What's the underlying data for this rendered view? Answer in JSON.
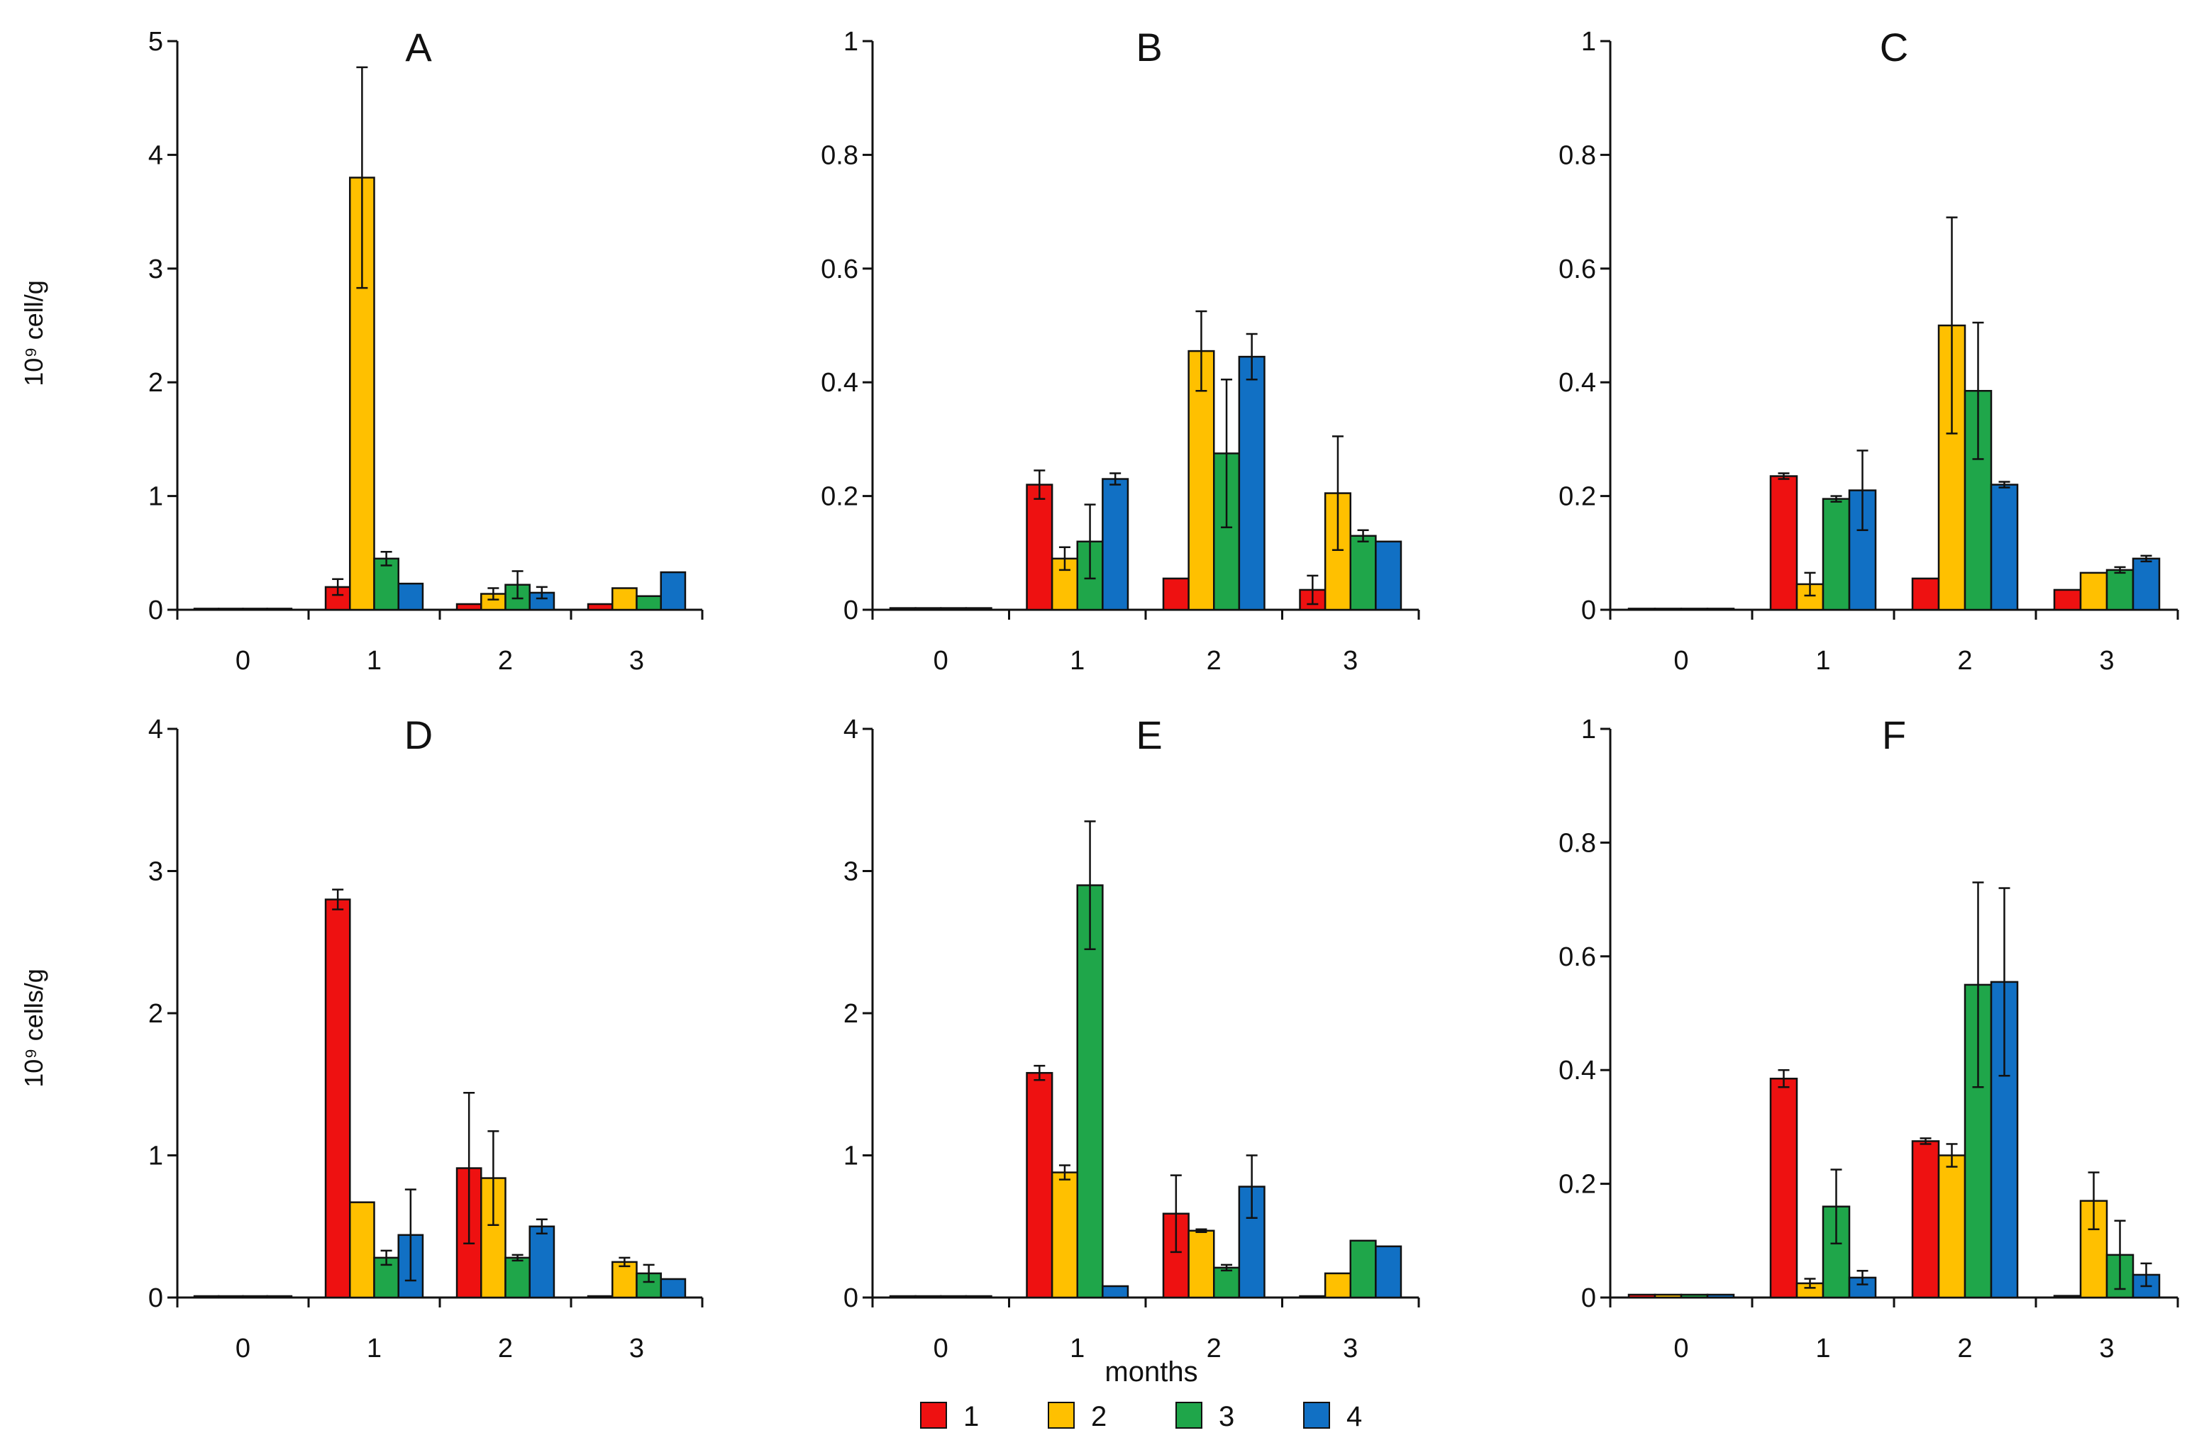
{
  "figure": {
    "y_title_top": "10⁹ cell/g",
    "y_title_bottom": "10⁹ cells/g",
    "x_title": "months"
  },
  "colors": {
    "1": "#EE1111",
    "2": "#FFC000",
    "3": "#1FA64A",
    "4": "#1170C4"
  },
  "legend": {
    "items": [
      {
        "label": "1",
        "color_key": "1"
      },
      {
        "label": "2",
        "color_key": "2"
      },
      {
        "label": "3",
        "color_key": "3"
      },
      {
        "label": "4",
        "color_key": "4"
      }
    ]
  },
  "chart_data": [
    {
      "type": "bar",
      "panel": "A",
      "categories": [
        "0",
        "1",
        "2",
        "3"
      ],
      "ylim": [
        0,
        5
      ],
      "yticks": [
        "0",
        "1",
        "2",
        "3",
        "4",
        "5"
      ],
      "series": [
        {
          "name": "1",
          "values": [
            0.01,
            0.2,
            0.05,
            0.05
          ],
          "errors": [
            0,
            0.07,
            0,
            0
          ]
        },
        {
          "name": "2",
          "values": [
            0.01,
            3.8,
            0.14,
            0.19
          ],
          "errors": [
            0,
            0.97,
            0.05,
            0
          ]
        },
        {
          "name": "3",
          "values": [
            0.01,
            0.45,
            0.22,
            0.12
          ],
          "errors": [
            0,
            0.06,
            0.12,
            0
          ]
        },
        {
          "name": "4",
          "values": [
            0.01,
            0.23,
            0.15,
            0.33
          ],
          "errors": [
            0,
            0,
            0.05,
            0
          ]
        }
      ]
    },
    {
      "type": "bar",
      "panel": "B",
      "categories": [
        "0",
        "1",
        "2",
        "3"
      ],
      "ylim": [
        0,
        1
      ],
      "yticks": [
        "0",
        "0.2",
        "0.4",
        "0.6",
        "0.8",
        "1"
      ],
      "series": [
        {
          "name": "1",
          "values": [
            0.003,
            0.22,
            0.055,
            0.035
          ],
          "errors": [
            0,
            0.025,
            0,
            0.025
          ]
        },
        {
          "name": "2",
          "values": [
            0.003,
            0.09,
            0.455,
            0.205
          ],
          "errors": [
            0,
            0.02,
            0.07,
            0.1
          ]
        },
        {
          "name": "3",
          "values": [
            0.003,
            0.12,
            0.275,
            0.13
          ],
          "errors": [
            0,
            0.065,
            0.13,
            0.01
          ]
        },
        {
          "name": "4",
          "values": [
            0.003,
            0.23,
            0.445,
            0.12
          ],
          "errors": [
            0,
            0.01,
            0.04,
            0
          ]
        }
      ]
    },
    {
      "type": "bar",
      "panel": "C",
      "categories": [
        "0",
        "1",
        "2",
        "3"
      ],
      "ylim": [
        0,
        1
      ],
      "yticks": [
        "0",
        "0.2",
        "0.4",
        "0.6",
        "0.8",
        "1"
      ],
      "series": [
        {
          "name": "1",
          "values": [
            0.002,
            0.235,
            0.055,
            0.035
          ],
          "errors": [
            0,
            0.005,
            0,
            0
          ]
        },
        {
          "name": "2",
          "values": [
            0.002,
            0.045,
            0.5,
            0.065
          ],
          "errors": [
            0,
            0.02,
            0.19,
            0
          ]
        },
        {
          "name": "3",
          "values": [
            0.002,
            0.195,
            0.385,
            0.07
          ],
          "errors": [
            0,
            0.005,
            0.12,
            0.005
          ]
        },
        {
          "name": "4",
          "values": [
            0.002,
            0.21,
            0.22,
            0.09
          ],
          "errors": [
            0,
            0.07,
            0.005,
            0.005
          ]
        }
      ]
    },
    {
      "type": "bar",
      "panel": "D",
      "categories": [
        "0",
        "1",
        "2",
        "3"
      ],
      "ylim": [
        0,
        4
      ],
      "yticks": [
        "0",
        "1",
        "2",
        "3",
        "4"
      ],
      "series": [
        {
          "name": "1",
          "values": [
            0.01,
            2.8,
            0.91,
            0.01
          ],
          "errors": [
            0,
            0.07,
            0.53,
            0
          ]
        },
        {
          "name": "2",
          "values": [
            0.01,
            0.67,
            0.84,
            0.25
          ],
          "errors": [
            0,
            0,
            0.33,
            0.03
          ]
        },
        {
          "name": "3",
          "values": [
            0.01,
            0.28,
            0.28,
            0.17
          ],
          "errors": [
            0,
            0.05,
            0.02,
            0.06
          ]
        },
        {
          "name": "4",
          "values": [
            0.01,
            0.44,
            0.5,
            0.13
          ],
          "errors": [
            0,
            0.32,
            0.05,
            0
          ]
        }
      ]
    },
    {
      "type": "bar",
      "panel": "E",
      "categories": [
        "0",
        "1",
        "2",
        "3"
      ],
      "ylim": [
        0,
        4
      ],
      "yticks": [
        "0",
        "1",
        "2",
        "3",
        "4"
      ],
      "series": [
        {
          "name": "1",
          "values": [
            0.01,
            1.58,
            0.59,
            0.01
          ],
          "errors": [
            0,
            0.05,
            0.27,
            0
          ]
        },
        {
          "name": "2",
          "values": [
            0.01,
            0.88,
            0.47,
            0.17
          ],
          "errors": [
            0,
            0.05,
            0.01,
            0
          ]
        },
        {
          "name": "3",
          "values": [
            0.01,
            2.9,
            0.21,
            0.4
          ],
          "errors": [
            0,
            0.45,
            0.02,
            0
          ]
        },
        {
          "name": "4",
          "values": [
            0.01,
            0.08,
            0.78,
            0.36
          ],
          "errors": [
            0,
            0,
            0.22,
            0
          ]
        }
      ]
    },
    {
      "type": "bar",
      "panel": "F",
      "categories": [
        "0",
        "1",
        "2",
        "3"
      ],
      "ylim": [
        0,
        1
      ],
      "yticks": [
        "0",
        "0.2",
        "0.4",
        "0.6",
        "0.8",
        "1"
      ],
      "series": [
        {
          "name": "1",
          "values": [
            0.005,
            0.385,
            0.275,
            0.003
          ],
          "errors": [
            0,
            0.015,
            0.005,
            0
          ]
        },
        {
          "name": "2",
          "values": [
            0.005,
            0.025,
            0.25,
            0.17
          ],
          "errors": [
            0,
            0.008,
            0.02,
            0.05
          ]
        },
        {
          "name": "3",
          "values": [
            0.005,
            0.16,
            0.55,
            0.075
          ],
          "errors": [
            0,
            0.065,
            0.18,
            0.06
          ]
        },
        {
          "name": "4",
          "values": [
            0.005,
            0.035,
            0.555,
            0.04
          ],
          "errors": [
            0,
            0.012,
            0.165,
            0.02
          ]
        }
      ]
    }
  ]
}
